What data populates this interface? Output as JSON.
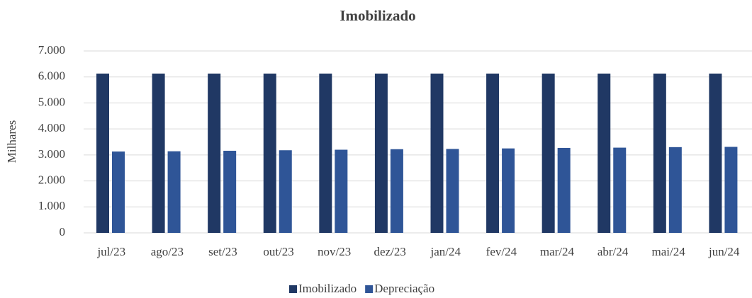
{
  "chart_data": {
    "type": "bar",
    "title": "Imobilizado",
    "y_label": "Milhares",
    "categories": [
      "jul/23",
      "ago/23",
      "set/23",
      "out/23",
      "nov/23",
      "dez/23",
      "jan/24",
      "fev/24",
      "mar/24",
      "abr/24",
      "mai/24",
      "jun/24"
    ],
    "series": [
      {
        "name": "Imobilizado",
        "color": "#203864",
        "values": [
          6130,
          6130,
          6130,
          6130,
          6130,
          6130,
          6130,
          6130,
          6130,
          6130,
          6130,
          6130
        ]
      },
      {
        "name": "Depreciação",
        "color": "#2f5597",
        "values": [
          3130,
          3140,
          3160,
          3180,
          3200,
          3220,
          3230,
          3250,
          3270,
          3280,
          3300,
          3310
        ]
      }
    ],
    "ylim": [
      0,
      7000
    ],
    "yticks": [
      0,
      {
        "value": 1000,
        "label": "1.000"
      },
      {
        "value": 2000,
        "label": "2.000"
      },
      {
        "value": 3000,
        "label": "3.000"
      },
      {
        "value": 4000,
        "label": "4.000"
      },
      {
        "value": 5000,
        "label": "5.000"
      },
      {
        "value": 6000,
        "label": "6.000"
      },
      {
        "value": 7000,
        "label": "7.000"
      }
    ],
    "grid": true,
    "legend": "bottom"
  }
}
